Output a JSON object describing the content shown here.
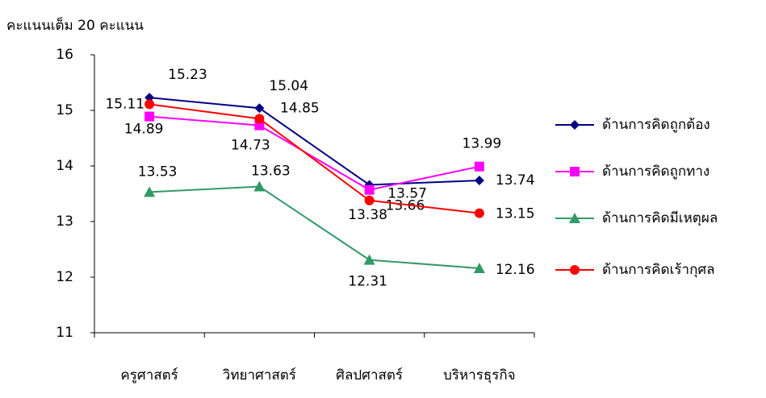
{
  "chart_data": {
    "type": "line",
    "y_label": "คะแนนเต็ม 20 คะแนน",
    "categories": [
      "ครูศาสตร์",
      "วิทยาศาสตร์",
      "ศิลปศาสตร์",
      "บริหารธุรกิจ"
    ],
    "series": [
      {
        "name": "ด้านการคิดถูกต้อง",
        "color": "#000080",
        "marker": "diamond",
        "values": [
          15.23,
          15.04,
          13.66,
          13.74
        ]
      },
      {
        "name": "ด้านการคิดถูกทาง",
        "color": "#ff00ff",
        "marker": "square",
        "values": [
          14.89,
          14.73,
          13.57,
          13.99
        ]
      },
      {
        "name": "ด้านการคิดมีเหตุผล",
        "color": "#339966",
        "marker": "triangle",
        "values": [
          13.53,
          13.63,
          12.31,
          12.16
        ]
      },
      {
        "name": "ด้านการคิดเร้ากุศล",
        "color": "#ff0000",
        "marker": "circle",
        "values": [
          15.11,
          14.85,
          13.38,
          13.15
        ]
      }
    ],
    "ylim": [
      11,
      16
    ],
    "yticks": [
      11,
      12,
      13,
      14,
      15,
      16
    ],
    "grid": false,
    "legend": "right"
  }
}
